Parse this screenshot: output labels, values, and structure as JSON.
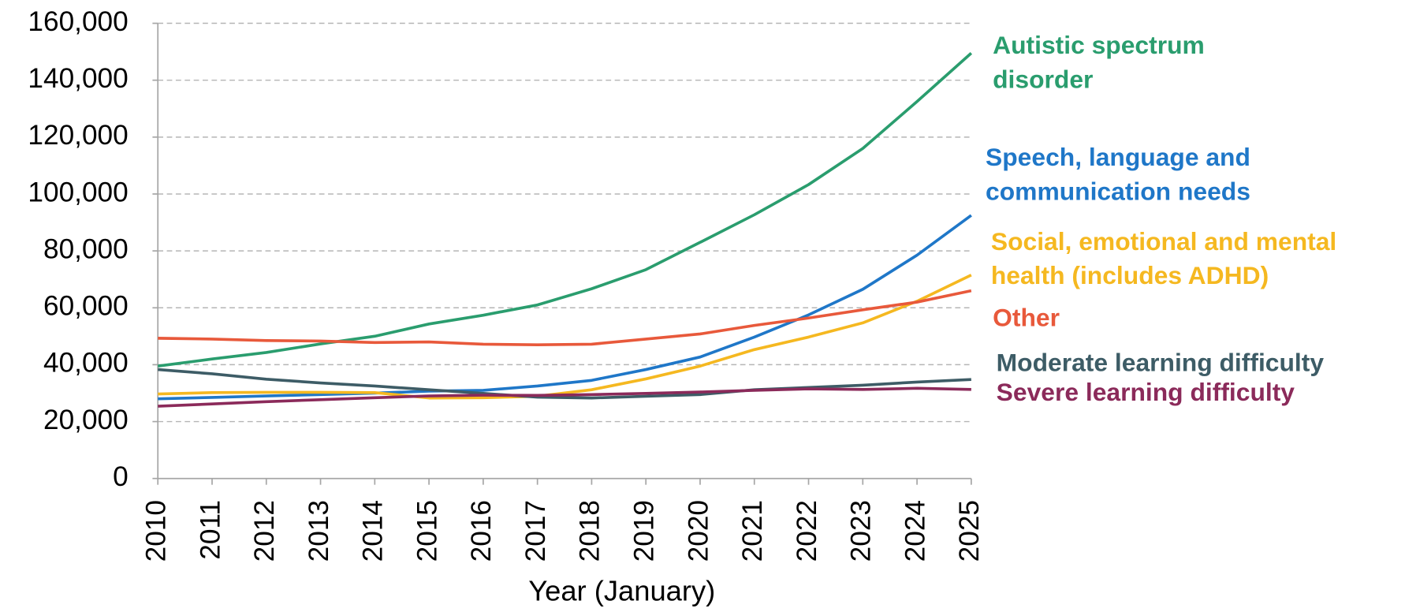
{
  "chart_data": {
    "type": "line",
    "x_label": "Year (January)",
    "x": [
      2010,
      2011,
      2012,
      2013,
      2014,
      2015,
      2016,
      2017,
      2018,
      2019,
      2020,
      2021,
      2022,
      2023,
      2024,
      2025
    ],
    "xlim": [
      2010,
      2025
    ],
    "xticks": [
      2010,
      2011,
      2012,
      2013,
      2014,
      2015,
      2016,
      2017,
      2018,
      2019,
      2020,
      2021,
      2022,
      2023,
      2024,
      2025
    ],
    "ylim": [
      0,
      160000
    ],
    "yticks": [
      0,
      {
        "value": 20000,
        "label": "20,000"
      },
      {
        "value": 40000,
        "label": "40,000"
      },
      {
        "value": 60000,
        "label": "60,000"
      },
      {
        "value": 80000,
        "label": "80,000"
      },
      {
        "value": 100000,
        "label": "100,000"
      },
      {
        "value": 120000,
        "label": "120,000"
      },
      {
        "value": 140000,
        "label": "140,000"
      },
      {
        "value": 160000,
        "label": "160,000"
      }
    ],
    "grid": true,
    "series": [
      {
        "name": "Autistic spectrum disorder",
        "color": "#2a9d6e",
        "values": [
          39500,
          42000,
          44300,
          47300,
          50000,
          54300,
          57400,
          61000,
          66700,
          73400,
          83000,
          92700,
          103300,
          116000,
          132500,
          149500
        ]
      },
      {
        "name": "Speech, language and communication needs",
        "color": "#1f77c8",
        "values": [
          28000,
          28500,
          29000,
          29500,
          30000,
          30700,
          31000,
          32500,
          34500,
          38300,
          42700,
          49700,
          57500,
          66500,
          78500,
          92500
        ]
      },
      {
        "name": "Social, emotional and mental health (includes ADHD)",
        "color": "#f5b820",
        "values": [
          29700,
          30200,
          30300,
          30300,
          30200,
          28300,
          28400,
          28900,
          31200,
          35000,
          39500,
          45300,
          49700,
          54700,
          62300,
          71500
        ]
      },
      {
        "name": "Other",
        "color": "#e8593b",
        "values": [
          49300,
          49000,
          48500,
          48300,
          47800,
          48000,
          47200,
          47000,
          47200,
          49000,
          50800,
          53800,
          56400,
          59300,
          62000,
          66000
        ]
      },
      {
        "name": "Moderate learning difficulty",
        "color": "#3d5c66",
        "values": [
          38300,
          36800,
          34900,
          33600,
          32500,
          31200,
          29900,
          28600,
          28300,
          28900,
          29500,
          31200,
          32000,
          32800,
          33900,
          34800
        ]
      },
      {
        "name": "Severe learning difficulty",
        "color": "#8b2a5a",
        "values": [
          25400,
          26200,
          27000,
          27700,
          28400,
          29000,
          29300,
          29200,
          29500,
          29900,
          30400,
          31000,
          31500,
          31300,
          31700,
          31300
        ]
      }
    ]
  }
}
